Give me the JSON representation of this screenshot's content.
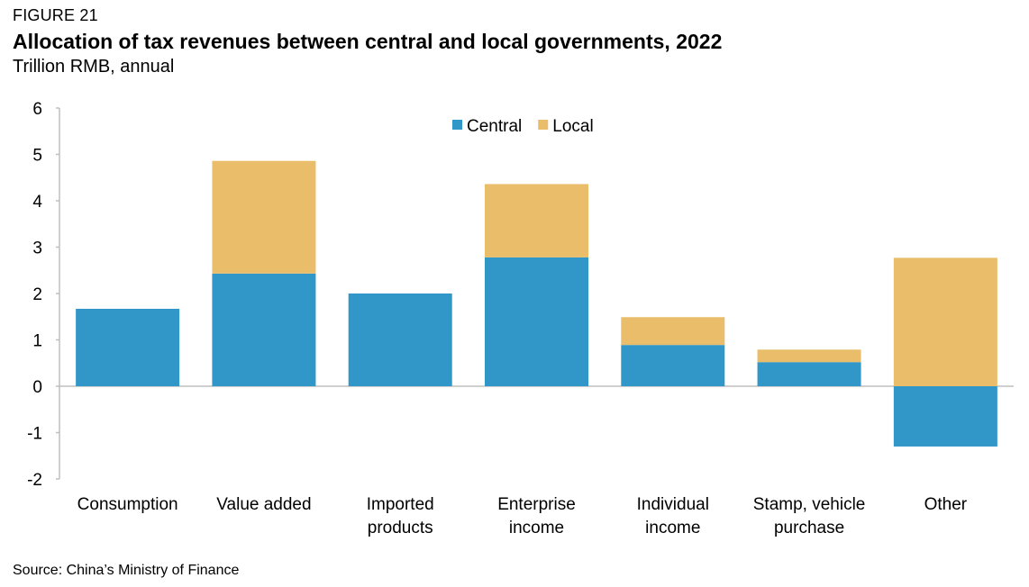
{
  "figure_label": "FIGURE 21",
  "title": "Allocation of tax revenues between central and local governments, 2022",
  "subtitle": "Trillion RMB, annual",
  "source": "Source: China’s Ministry of Finance",
  "colors": {
    "central": "#3196c8",
    "local": "#e9bd6a",
    "axis": "#bfbfbf",
    "text": "#000000"
  },
  "chart_data": {
    "type": "bar",
    "stacked": true,
    "categories": [
      [
        "Consumption"
      ],
      [
        "Value added"
      ],
      [
        "Imported",
        "products"
      ],
      [
        "Enterprise",
        "income"
      ],
      [
        "Individual",
        "income"
      ],
      [
        "Stamp, vehicle",
        "purchase"
      ],
      [
        "Other"
      ]
    ],
    "series": [
      {
        "name": "Central",
        "values": [
          1.67,
          2.43,
          2.0,
          2.78,
          0.89,
          0.52,
          -1.3
        ]
      },
      {
        "name": "Local",
        "values": [
          0.0,
          2.43,
          0.0,
          1.58,
          0.6,
          0.27,
          2.77
        ]
      }
    ],
    "ylim": [
      -2,
      6
    ],
    "yticks": [
      6,
      5,
      4,
      3,
      2,
      1,
      0,
      -1,
      -2
    ],
    "legend_position": "top-center",
    "grid": false
  }
}
